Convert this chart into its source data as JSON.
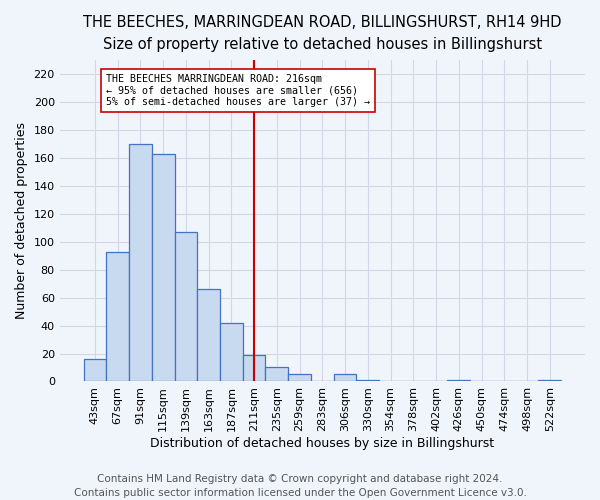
{
  "title": "THE BEECHES, MARRINGDEAN ROAD, BILLINGSHURST, RH14 9HD",
  "subtitle": "Size of property relative to detached houses in Billingshurst",
  "xlabel": "Distribution of detached houses by size in Billingshurst",
  "ylabel": "Number of detached properties",
  "footer1": "Contains HM Land Registry data © Crown copyright and database right 2024.",
  "footer2": "Contains public sector information licensed under the Open Government Licence v3.0.",
  "categories": [
    "43sqm",
    "67sqm",
    "91sqm",
    "115sqm",
    "139sqm",
    "163sqm",
    "187sqm",
    "211sqm",
    "235sqm",
    "259sqm",
    "283sqm",
    "306sqm",
    "330sqm",
    "354sqm",
    "378sqm",
    "402sqm",
    "426sqm",
    "450sqm",
    "474sqm",
    "498sqm",
    "522sqm"
  ],
  "values": [
    16,
    93,
    170,
    163,
    107,
    66,
    42,
    19,
    10,
    5,
    0,
    5,
    1,
    0,
    0,
    0,
    1,
    0,
    0,
    0,
    1
  ],
  "bar_color": "#c8daef",
  "bar_edge_color": "#4472c4",
  "highlight_index": 7,
  "vline_color": "#cc0000",
  "annotation_text": "THE BEECHES MARRINGDEAN ROAD: 216sqm\n← 95% of detached houses are smaller (656)\n5% of semi-detached houses are larger (37) →",
  "annotation_box_color": "#ffffff",
  "annotation_box_edge": "#cc0000",
  "ylim": [
    0,
    230
  ],
  "yticks": [
    0,
    20,
    40,
    60,
    80,
    100,
    120,
    140,
    160,
    180,
    200,
    220
  ],
  "bg_color": "#f0f4fb",
  "grid_color": "#d0d8e8",
  "title_fontsize": 10.5,
  "subtitle_fontsize": 9,
  "label_fontsize": 9,
  "tick_fontsize": 8,
  "footer_fontsize": 7.5
}
